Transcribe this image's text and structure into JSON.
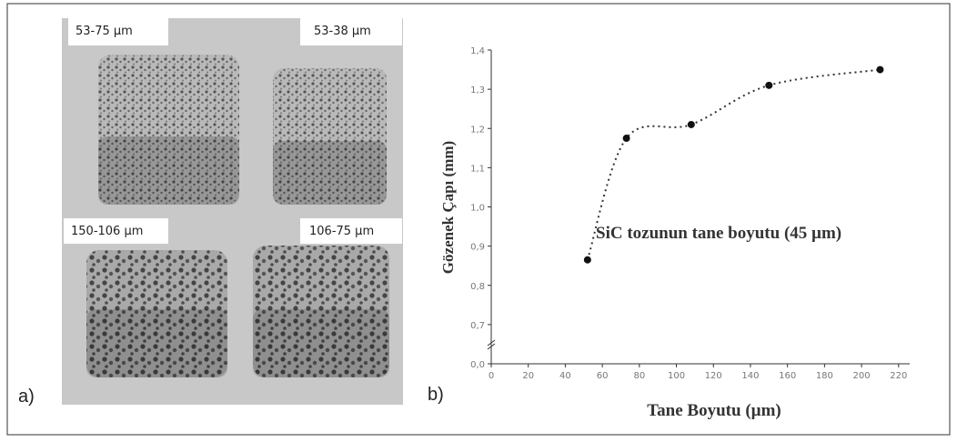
{
  "figure": {
    "panel_a_label": "a)",
    "panel_b_label": "b)",
    "sample_labels": [
      "53-75 µm",
      "53-38 µm",
      "150-106 µm",
      "106-75 µm"
    ]
  },
  "chart_data": {
    "type": "scatter",
    "x_label": "Tane Boyutu (µm)",
    "y_label": "Gözenek Çapı (mm)",
    "annotation": "SiC tozunun tane boyutu (45 µm)",
    "x": [
      52,
      73,
      108,
      150,
      210
    ],
    "values": [
      0.865,
      1.175,
      1.21,
      1.31,
      1.35
    ],
    "color": "#111",
    "trendline": "dotted",
    "axis_break": true,
    "xlim": [
      0,
      226
    ],
    "xticks": [
      0,
      20,
      40,
      60,
      80,
      100,
      120,
      140,
      160,
      180,
      200,
      220
    ],
    "ylim": [
      0.6,
      1.4
    ],
    "yticks": [
      {
        "value": 0.0,
        "label": "0,0"
      },
      {
        "value": 0.7,
        "label": "0,7"
      },
      {
        "value": 0.8,
        "label": "0,8"
      },
      {
        "value": 0.9,
        "label": "0,9"
      },
      {
        "value": 1.0,
        "label": "1,0"
      },
      {
        "value": 1.1,
        "label": "1,1"
      },
      {
        "value": 1.2,
        "label": "1,2"
      },
      {
        "value": 1.3,
        "label": "1,3"
      },
      {
        "value": 1.4,
        "label": "1,4"
      }
    ]
  }
}
